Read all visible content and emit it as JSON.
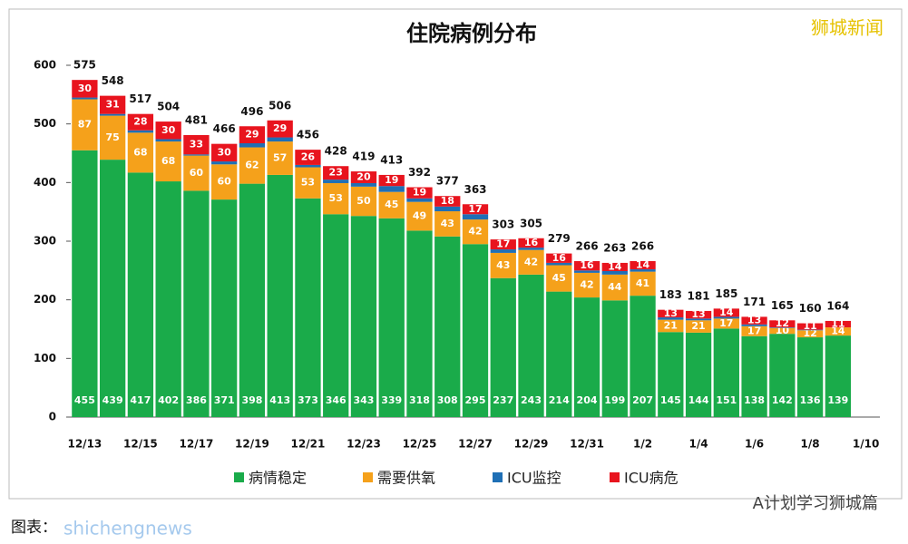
{
  "chart_data": {
    "type": "stacked_bar",
    "title": "住院病例分布",
    "watermark": "狮城新闻",
    "footer_left": "图表：",
    "footer_watermark": "shichengnews",
    "footer_right": "A计划学习狮城篇",
    "categories": [
      "12/13",
      null,
      "12/15",
      null,
      "12/17",
      null,
      "12/19",
      null,
      "12/21",
      null,
      "12/23",
      null,
      "12/25",
      null,
      "12/27",
      null,
      "12/29",
      null,
      "12/31",
      null,
      "1/2",
      null,
      "1/4",
      null,
      "1/6",
      null,
      "1/8",
      null,
      "1/10"
    ],
    "series": [
      {
        "name": "病情稳定",
        "color": "#1aab4a",
        "values": [
          455,
          439,
          417,
          402,
          386,
          371,
          398,
          413,
          373,
          346,
          343,
          339,
          318,
          308,
          295,
          237,
          243,
          214,
          204,
          199,
          207,
          145,
          144,
          151,
          138,
          142,
          136,
          139,
          null
        ]
      },
      {
        "name": "需要供氧",
        "color": "#f5a11b",
        "values": [
          87,
          75,
          68,
          68,
          60,
          60,
          62,
          57,
          53,
          53,
          50,
          45,
          49,
          43,
          42,
          43,
          42,
          45,
          42,
          44,
          41,
          21,
          21,
          17,
          17,
          10,
          12,
          14,
          null
        ]
      },
      {
        "name": "ICU监控",
        "color": "#1f6fb5",
        "values": [
          3,
          3,
          4,
          4,
          2,
          5,
          7,
          7,
          4,
          6,
          6,
          10,
          6,
          8,
          9,
          6,
          4,
          4,
          4,
          6,
          4,
          4,
          3,
          3,
          3,
          1,
          1,
          0,
          null
        ]
      },
      {
        "name": "ICU病危",
        "color": "#e8141e",
        "values": [
          30,
          31,
          28,
          30,
          33,
          30,
          29,
          29,
          26,
          23,
          20,
          19,
          19,
          18,
          17,
          17,
          16,
          16,
          16,
          14,
          14,
          13,
          13,
          14,
          13,
          12,
          11,
          11,
          null
        ]
      }
    ],
    "totals": [
      575,
      548,
      517,
      504,
      481,
      466,
      496,
      506,
      456,
      428,
      419,
      413,
      392,
      377,
      363,
      303,
      305,
      279,
      266,
      263,
      266,
      183,
      181,
      185,
      171,
      165,
      160,
      164,
      null
    ],
    "ylim": [
      0,
      600
    ],
    "yticks": [
      0,
      100,
      200,
      300,
      400,
      500,
      600
    ],
    "legend": "bottom"
  }
}
